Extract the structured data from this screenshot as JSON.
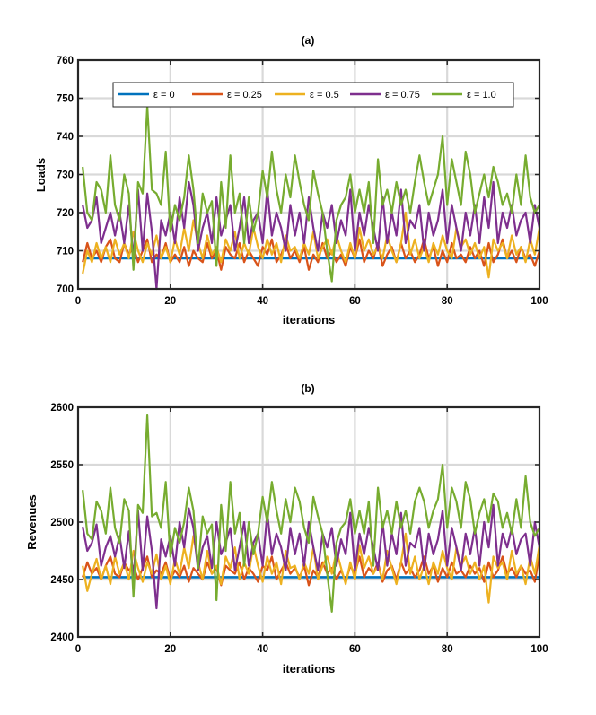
{
  "chart_data": [
    {
      "type": "line",
      "title": "(a)",
      "xlabel": "iterations",
      "ylabel": "Loads",
      "xlim": [
        0,
        100
      ],
      "ylim": [
        700,
        760
      ],
      "xticks": [
        0,
        20,
        40,
        60,
        80,
        100
      ],
      "yticks": [
        700,
        710,
        720,
        730,
        740,
        750,
        760
      ],
      "grid": true,
      "legend_position": "top",
      "series": [
        {
          "name": "ε = 0",
          "color": "#0072BD",
          "values": [
            708,
            708,
            708,
            708,
            708,
            708,
            708,
            708,
            708,
            708,
            708,
            708,
            708,
            708,
            708,
            708,
            708,
            708,
            708,
            708,
            708,
            708,
            708,
            708,
            708,
            708,
            708,
            708,
            708,
            708,
            708,
            708,
            708,
            708,
            708,
            708,
            708,
            708,
            708,
            708,
            708,
            708,
            708,
            708,
            708,
            708,
            708,
            708,
            708,
            708,
            708,
            708,
            708,
            708,
            708,
            708,
            708,
            708,
            708,
            708,
            708,
            708,
            708,
            708,
            708,
            708,
            708,
            708,
            708,
            708,
            708,
            708,
            708,
            708,
            708,
            708,
            708,
            708,
            708,
            708,
            708,
            708,
            708,
            708,
            708,
            708,
            708,
            708,
            708,
            708,
            708,
            708,
            708,
            708,
            708,
            708,
            708,
            708,
            708,
            708
          ]
        },
        {
          "name": "ε = 0.25",
          "color": "#D95319",
          "values": [
            707,
            712,
            708,
            710,
            707,
            711,
            713,
            708,
            707,
            712,
            709,
            711,
            707,
            710,
            713,
            707,
            709,
            708,
            712,
            707,
            709,
            707,
            711,
            706,
            710,
            708,
            707,
            712,
            708,
            710,
            705,
            711,
            709,
            708,
            712,
            707,
            710,
            708,
            706,
            711,
            709,
            713,
            707,
            709,
            712,
            708,
            710,
            707,
            711,
            705,
            709,
            707,
            712,
            708,
            710,
            707,
            709,
            706,
            711,
            708,
            713,
            707,
            710,
            708,
            712,
            706,
            709,
            711,
            707,
            712,
            708,
            710,
            707,
            709,
            713,
            708,
            711,
            706,
            710,
            707,
            712,
            708,
            709,
            707,
            711,
            708,
            710,
            706,
            712,
            707,
            709,
            713,
            708,
            710,
            707,
            711,
            708,
            709,
            706,
            710
          ]
        },
        {
          "name": "ε = 0.5",
          "color": "#EDB120",
          "values": [
            704,
            710,
            707,
            712,
            708,
            711,
            707,
            713,
            709,
            712,
            708,
            715,
            710,
            707,
            712,
            709,
            714,
            708,
            711,
            707,
            713,
            709,
            716,
            710,
            718,
            712,
            708,
            714,
            709,
            711,
            707,
            713,
            710,
            715,
            708,
            712,
            709,
            716,
            711,
            708,
            713,
            709,
            712,
            707,
            714,
            710,
            711,
            708,
            712,
            709,
            715,
            708,
            711,
            713,
            709,
            714,
            710,
            707,
            712,
            708,
            716,
            710,
            713,
            709,
            711,
            708,
            714,
            710,
            707,
            712,
            720,
            709,
            713,
            708,
            711,
            707,
            712,
            709,
            714,
            710,
            708,
            716,
            711,
            713,
            709,
            712,
            708,
            711,
            703,
            713,
            710,
            712,
            708,
            714,
            709,
            711,
            707,
            713,
            709,
            716
          ]
        },
        {
          "name": "ε = 0.75",
          "color": "#7E2F8E",
          "values": [
            722,
            716,
            718,
            724,
            712,
            716,
            720,
            714,
            720,
            712,
            722,
            708,
            726,
            710,
            725,
            715,
            700,
            718,
            714,
            720,
            712,
            724,
            716,
            728,
            722,
            710,
            716,
            720,
            712,
            724,
            714,
            718,
            722,
            710,
            716,
            724,
            712,
            718,
            720,
            712,
            726,
            714,
            720,
            716,
            710,
            722,
            714,
            720,
            712,
            724,
            716,
            710,
            720,
            716,
            722,
            712,
            718,
            714,
            726,
            710,
            720,
            714,
            722,
            716,
            710,
            724,
            712,
            720,
            714,
            726,
            712,
            718,
            716,
            722,
            710,
            720,
            714,
            718,
            726,
            712,
            722,
            716,
            710,
            720,
            714,
            722,
            712,
            724,
            716,
            728,
            712,
            720,
            716,
            722,
            714,
            718,
            720,
            712,
            722,
            716
          ]
        },
        {
          "name": "ε = 1.0",
          "color": "#77AC30",
          "values": [
            732,
            720,
            718,
            728,
            726,
            720,
            735,
            722,
            718,
            730,
            725,
            705,
            728,
            725,
            748,
            726,
            725,
            722,
            736,
            715,
            722,
            718,
            724,
            735,
            726,
            712,
            725,
            720,
            723,
            706,
            728,
            716,
            735,
            720,
            725,
            712,
            724,
            715,
            720,
            731,
            724,
            736,
            726,
            720,
            730,
            724,
            735,
            728,
            722,
            718,
            731,
            725,
            720,
            710,
            702,
            718,
            722,
            724,
            730,
            720,
            726,
            720,
            728,
            712,
            734,
            722,
            726,
            720,
            728,
            722,
            726,
            720,
            728,
            735,
            728,
            722,
            726,
            730,
            740,
            722,
            734,
            728,
            722,
            736,
            730,
            720,
            725,
            730,
            724,
            732,
            728,
            722,
            725,
            720,
            730,
            722,
            735,
            724,
            720,
            722
          ]
        }
      ]
    },
    {
      "type": "line",
      "title": "(b)",
      "xlabel": "iterations",
      "ylabel": "Revenues",
      "xlim": [
        0,
        100
      ],
      "ylim": [
        2400,
        2600
      ],
      "xticks": [
        0,
        20,
        40,
        60,
        80,
        100
      ],
      "yticks": [
        2400,
        2450,
        2500,
        2550,
        2600
      ],
      "grid": true,
      "series": [
        {
          "name": "ε = 0",
          "color": "#0072BD",
          "values": [
            2452,
            2452,
            2452,
            2452,
            2452,
            2452,
            2452,
            2452,
            2452,
            2452,
            2452,
            2452,
            2452,
            2452,
            2452,
            2452,
            2452,
            2452,
            2452,
            2452,
            2452,
            2452,
            2452,
            2452,
            2452,
            2452,
            2452,
            2452,
            2452,
            2452,
            2452,
            2452,
            2452,
            2452,
            2452,
            2452,
            2452,
            2452,
            2452,
            2452,
            2452,
            2452,
            2452,
            2452,
            2452,
            2452,
            2452,
            2452,
            2452,
            2452,
            2452,
            2452,
            2452,
            2452,
            2452,
            2452,
            2452,
            2452,
            2452,
            2452,
            2452,
            2452,
            2452,
            2452,
            2452,
            2452,
            2452,
            2452,
            2452,
            2452,
            2452,
            2452,
            2452,
            2452,
            2452,
            2452,
            2452,
            2452,
            2452,
            2452,
            2452,
            2452,
            2452,
            2452,
            2452,
            2452,
            2452,
            2452,
            2452,
            2452,
            2452,
            2452,
            2452,
            2452,
            2452,
            2452,
            2452,
            2452,
            2452,
            2452
          ]
        },
        {
          "name": "ε = 0.25",
          "color": "#D95319",
          "values": [
            2452,
            2465,
            2455,
            2460,
            2450,
            2462,
            2470,
            2455,
            2452,
            2465,
            2458,
            2462,
            2450,
            2460,
            2470,
            2452,
            2458,
            2455,
            2465,
            2450,
            2458,
            2452,
            2462,
            2448,
            2460,
            2455,
            2450,
            2465,
            2455,
            2460,
            2445,
            2462,
            2458,
            2455,
            2465,
            2450,
            2460,
            2455,
            2448,
            2462,
            2458,
            2470,
            2450,
            2458,
            2465,
            2455,
            2460,
            2452,
            2462,
            2445,
            2458,
            2452,
            2465,
            2455,
            2460,
            2450,
            2458,
            2448,
            2462,
            2455,
            2470,
            2452,
            2460,
            2455,
            2465,
            2448,
            2458,
            2462,
            2450,
            2465,
            2455,
            2460,
            2452,
            2458,
            2470,
            2455,
            2462,
            2448,
            2460,
            2452,
            2465,
            2455,
            2458,
            2452,
            2462,
            2455,
            2460,
            2448,
            2465,
            2452,
            2458,
            2470,
            2455,
            2460,
            2452,
            2462,
            2455,
            2458,
            2448,
            2472
          ]
        },
        {
          "name": "ε = 0.5",
          "color": "#EDB120",
          "values": [
            2462,
            2440,
            2455,
            2468,
            2450,
            2462,
            2446,
            2470,
            2455,
            2465,
            2450,
            2475,
            2460,
            2448,
            2465,
            2455,
            2472,
            2450,
            2462,
            2446,
            2468,
            2455,
            2478,
            2460,
            2488,
            2465,
            2450,
            2475,
            2455,
            2462,
            2446,
            2470,
            2460,
            2478,
            2450,
            2465,
            2455,
            2480,
            2462,
            2448,
            2470,
            2455,
            2465,
            2446,
            2475,
            2460,
            2462,
            2450,
            2465,
            2455,
            2478,
            2450,
            2462,
            2470,
            2455,
            2475,
            2460,
            2446,
            2465,
            2450,
            2480,
            2460,
            2470,
            2455,
            2462,
            2450,
            2475,
            2460,
            2446,
            2465,
            2490,
            2455,
            2470,
            2450,
            2462,
            2446,
            2465,
            2455,
            2475,
            2460,
            2450,
            2478,
            2462,
            2470,
            2455,
            2465,
            2450,
            2462,
            2430,
            2470,
            2460,
            2465,
            2450,
            2475,
            2455,
            2462,
            2446,
            2470,
            2455,
            2480
          ]
        },
        {
          "name": "ε = 0.75",
          "color": "#7E2F8E",
          "values": [
            2496,
            2475,
            2482,
            2498,
            2462,
            2478,
            2488,
            2470,
            2488,
            2460,
            2492,
            2450,
            2510,
            2458,
            2505,
            2475,
            2425,
            2485,
            2470,
            2488,
            2462,
            2500,
            2478,
            2512,
            2495,
            2458,
            2478,
            2488,
            2460,
            2500,
            2472,
            2482,
            2495,
            2458,
            2478,
            2500,
            2462,
            2482,
            2490,
            2462,
            2508,
            2472,
            2490,
            2478,
            2458,
            2495,
            2472,
            2490,
            2462,
            2500,
            2478,
            2458,
            2490,
            2478,
            2495,
            2462,
            2485,
            2472,
            2508,
            2458,
            2490,
            2472,
            2495,
            2478,
            2458,
            2500,
            2462,
            2490,
            2472,
            2508,
            2462,
            2482,
            2478,
            2495,
            2458,
            2490,
            2472,
            2485,
            2510,
            2462,
            2495,
            2478,
            2458,
            2490,
            2472,
            2495,
            2462,
            2500,
            2478,
            2515,
            2462,
            2490,
            2478,
            2495,
            2472,
            2485,
            2490,
            2462,
            2500,
            2478
          ]
        },
        {
          "name": "ε = 1.0",
          "color": "#77AC30",
          "values": [
            2528,
            2490,
            2485,
            2518,
            2510,
            2490,
            2530,
            2495,
            2482,
            2520,
            2510,
            2435,
            2515,
            2508,
            2593,
            2505,
            2508,
            2495,
            2535,
            2470,
            2495,
            2482,
            2500,
            2530,
            2510,
            2460,
            2505,
            2490,
            2498,
            2432,
            2515,
            2475,
            2535,
            2490,
            2508,
            2462,
            2500,
            2472,
            2490,
            2522,
            2500,
            2535,
            2510,
            2490,
            2520,
            2500,
            2530,
            2518,
            2495,
            2482,
            2522,
            2505,
            2490,
            2455,
            2422,
            2482,
            2495,
            2500,
            2520,
            2490,
            2510,
            2490,
            2518,
            2462,
            2530,
            2495,
            2510,
            2490,
            2518,
            2495,
            2510,
            2490,
            2518,
            2530,
            2518,
            2495,
            2510,
            2520,
            2550,
            2495,
            2530,
            2518,
            2495,
            2535,
            2520,
            2490,
            2508,
            2520,
            2500,
            2525,
            2518,
            2495,
            2508,
            2490,
            2520,
            2495,
            2540,
            2500,
            2488,
            2495
          ]
        }
      ]
    }
  ]
}
